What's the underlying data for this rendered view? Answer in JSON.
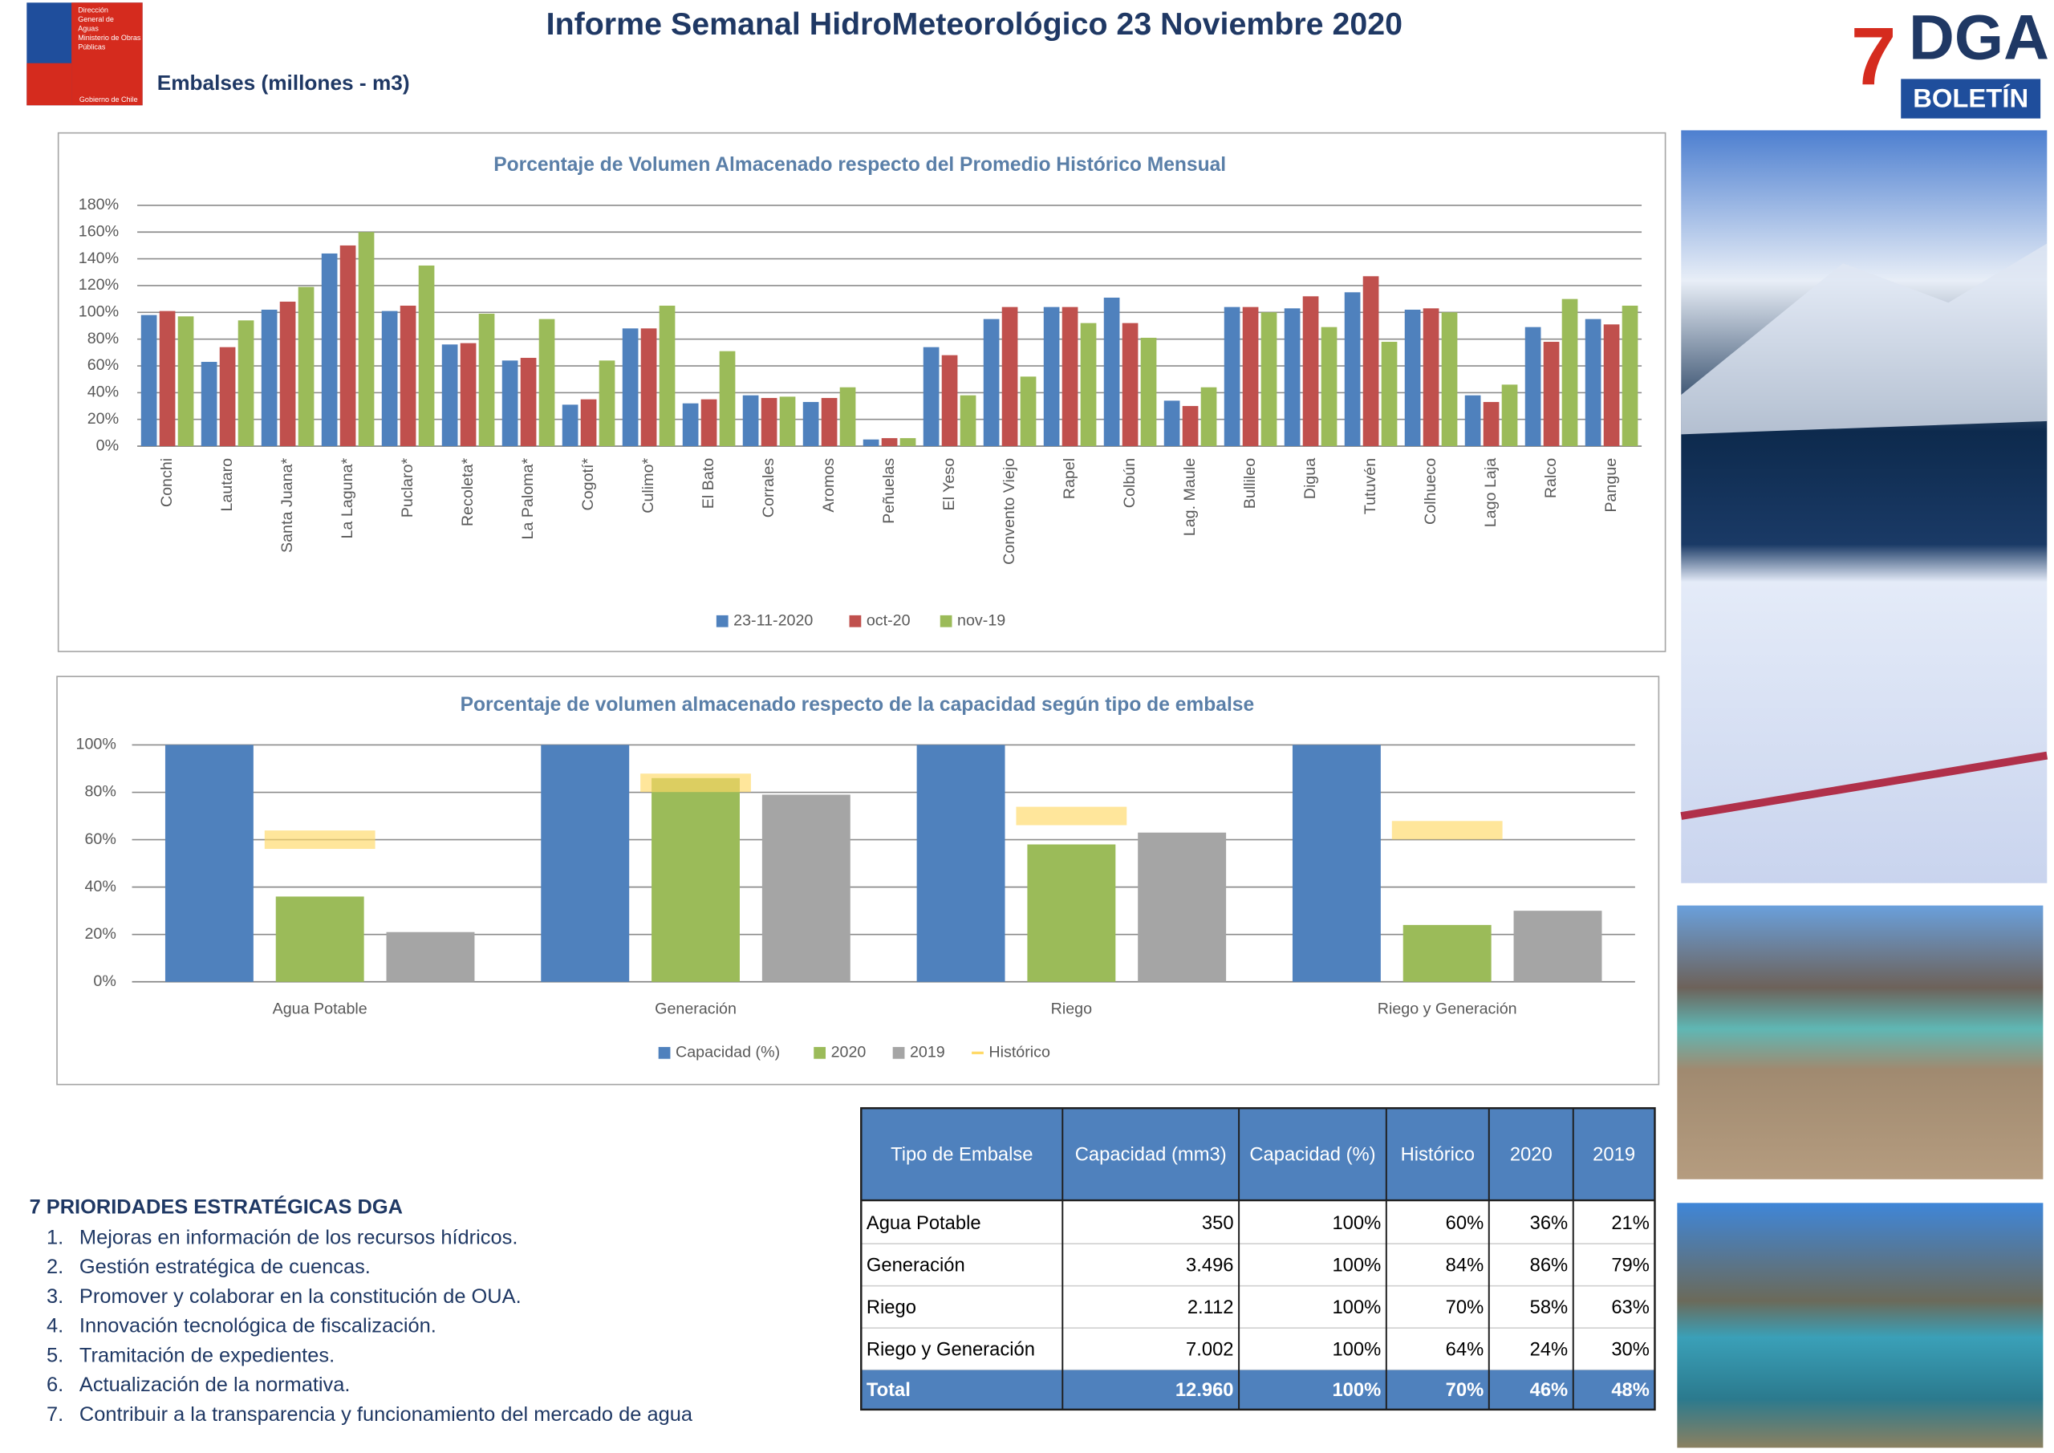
{
  "header": {
    "title": "Informe Semanal  HidroMeteorológico 23 Noviembre 2020",
    "subtitle": "Embalses (millones - m3)",
    "gov_logo": [
      "Dirección",
      "General de",
      "Aguas",
      "Ministerio de Obras",
      "Públicas",
      "Gobierno de Chile"
    ],
    "dga_logo": {
      "seven": "7",
      "dga": "DGA",
      "boletin": "BOLETÍN"
    }
  },
  "chart_data": [
    {
      "type": "bar",
      "title": "Porcentaje de Volumen Almacenado respecto del Promedio Histórico Mensual",
      "categories": [
        "Conchi",
        "Lautaro",
        "Santa Juana*",
        "La Laguna*",
        "Puclaro*",
        "Recoleta*",
        "La Paloma*",
        "Cogotí*",
        "Culimo*",
        "El Bato",
        "Corrales",
        "Aromos",
        "Peñuelas",
        "El Yeso",
        "Convento Viejo",
        "Rapel",
        "Colbún",
        "Lag. Maule",
        "Bullileo",
        "Digua",
        "Tutuvén",
        "Colhueco",
        "Lago Laja",
        "Ralco",
        "Pangue"
      ],
      "series": [
        {
          "name": "23-11-2020",
          "color": "#4f81bd",
          "values": [
            98,
            63,
            102,
            144,
            101,
            76,
            64,
            31,
            88,
            32,
            38,
            33,
            5,
            74,
            95,
            104,
            111,
            34,
            104,
            103,
            115,
            102,
            38,
            89,
            95
          ]
        },
        {
          "name": "oct-20",
          "color": "#c0504d",
          "values": [
            101,
            74,
            108,
            150,
            105,
            77,
            66,
            35,
            88,
            35,
            36,
            36,
            6,
            68,
            104,
            104,
            92,
            30,
            104,
            112,
            127,
            103,
            33,
            78,
            91
          ]
        },
        {
          "name": "nov-19",
          "color": "#9bbb59",
          "values": [
            97,
            94,
            119,
            160,
            135,
            99,
            95,
            64,
            105,
            71,
            37,
            44,
            6,
            38,
            52,
            92,
            81,
            44,
            100,
            89,
            78,
            100,
            46,
            110,
            105
          ]
        }
      ],
      "ylim": [
        0,
        180
      ],
      "yticks": [
        {
          "value": 0,
          "label": "0%"
        },
        {
          "value": 20,
          "label": "20%"
        },
        {
          "value": 40,
          "label": "40%"
        },
        {
          "value": 60,
          "label": "60%"
        },
        {
          "value": 80,
          "label": "80%"
        },
        {
          "value": 100,
          "label": "100%"
        },
        {
          "value": 120,
          "label": "120%"
        },
        {
          "value": 140,
          "label": "140%"
        },
        {
          "value": 160,
          "label": "160%"
        },
        {
          "value": 180,
          "label": "180%"
        }
      ],
      "grid": true,
      "legend": "bottom"
    },
    {
      "type": "bar",
      "title": "Porcentaje de volumen almacenado respecto de la capacidad según tipo de embalse",
      "categories": [
        "Agua Potable",
        "Generación",
        "Riego",
        "Riego y Generación"
      ],
      "series": [
        {
          "name": "Capacidad (%)",
          "color": "#4f81bd",
          "values": [
            100,
            100,
            100,
            100
          ]
        },
        {
          "name": "2020",
          "color": "#9bbb59",
          "values": [
            36,
            86,
            58,
            24
          ]
        },
        {
          "name": "2019",
          "color": "#a5a5a5",
          "values": [
            21,
            79,
            63,
            30
          ]
        },
        {
          "name": "Histórico",
          "color": "#ffd966",
          "kind": "line",
          "values": [
            60,
            84,
            70,
            64
          ]
        }
      ],
      "ylim": [
        0,
        100
      ],
      "yticks": [
        {
          "value": 0,
          "label": "0%"
        },
        {
          "value": 20,
          "label": "20%"
        },
        {
          "value": 40,
          "label": "40%"
        },
        {
          "value": 60,
          "label": "60%"
        },
        {
          "value": 80,
          "label": "80%"
        },
        {
          "value": 100,
          "label": "100%"
        }
      ],
      "grid": true,
      "legend": "bottom"
    }
  ],
  "table": {
    "header": [
      "Tipo de Embalse",
      "Capacidad (mm3)",
      "Capacidad (%)",
      "Histórico",
      "2020",
      "2019"
    ],
    "rows": [
      [
        "Agua Potable",
        "350",
        "100%",
        "60%",
        "36%",
        "21%"
      ],
      [
        "Generación",
        "3.496",
        "100%",
        "84%",
        "86%",
        "79%"
      ],
      [
        "Riego",
        "2.112",
        "100%",
        "70%",
        "58%",
        "63%"
      ],
      [
        "Riego y Generación",
        "7.002",
        "100%",
        "64%",
        "24%",
        "30%"
      ]
    ],
    "total": [
      "Total",
      "12.960",
      "100%",
      "70%",
      "46%",
      "48%"
    ]
  },
  "priorities": {
    "title": "7 PRIORIDADES ESTRATÉGICAS DGA",
    "items": [
      {
        "number": "1.",
        "text": "Mejoras en información de los recursos hídricos."
      },
      {
        "number": "2.",
        "text": "Gestión estratégica de cuencas."
      },
      {
        "number": "3.",
        "text": "Promover y colaborar en la constitución de OUA."
      },
      {
        "number": "4.",
        "text": "Innovación tecnológica de fiscalización."
      },
      {
        "number": "5.",
        "text": "Tramitación de expedientes."
      },
      {
        "number": "6.",
        "text": "Actualización de la normativa."
      },
      {
        "number": "7.",
        "text": "Contribuir a la transparencia y funcionamiento del mercado de agua"
      }
    ]
  }
}
